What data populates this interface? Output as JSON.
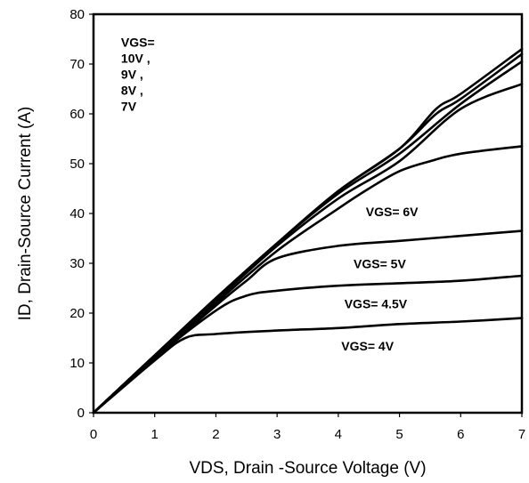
{
  "chart_data": {
    "type": "line",
    "title": "",
    "xlabel": "VDS, Drain -Source Voltage (V)",
    "ylabel": "ID, Drain-Source Current (A)",
    "xlim": [
      0,
      7
    ],
    "ylim": [
      0,
      80
    ],
    "xticks": [
      0,
      1,
      2,
      3,
      4,
      5,
      6,
      7
    ],
    "yticks": [
      0,
      10,
      20,
      30,
      40,
      50,
      60,
      70,
      80
    ],
    "grid": false,
    "line_color": "#000000",
    "series": [
      {
        "x": [
          0,
          1,
          2,
          3,
          4,
          5,
          5.6,
          6,
          7
        ],
        "y": [
          0,
          11.5,
          23,
          34,
          44.5,
          53,
          61,
          64,
          73
        ]
      },
      {
        "x": [
          0,
          1,
          2,
          3,
          4,
          5,
          5.6,
          6,
          7
        ],
        "y": [
          0,
          11.5,
          23,
          34,
          44.5,
          53,
          60,
          63,
          72
        ]
      },
      {
        "x": [
          0,
          1,
          2,
          3,
          4,
          5,
          6,
          7
        ],
        "y": [
          0,
          11.5,
          23,
          34,
          44,
          52,
          62,
          70.5
        ]
      },
      {
        "x": [
          0,
          1,
          2,
          3,
          4,
          5,
          6,
          7
        ],
        "y": [
          0,
          11.5,
          22.5,
          33.5,
          43,
          50.5,
          61,
          66
        ]
      },
      {
        "x": [
          0,
          1,
          2,
          3,
          4,
          4.5,
          5,
          5.5,
          6,
          7
        ],
        "y": [
          0,
          11,
          22,
          32.5,
          41,
          45,
          48.5,
          50.5,
          52,
          53.5
        ]
      },
      {
        "x": [
          0,
          1,
          2,
          2.5,
          3,
          4,
          5,
          6,
          7
        ],
        "y": [
          0,
          11,
          21.5,
          26.5,
          31,
          33.5,
          34.5,
          35.5,
          36.5
        ]
      },
      {
        "x": [
          0,
          1,
          2,
          2.5,
          3,
          4,
          5,
          6,
          7
        ],
        "y": [
          0,
          11,
          20.5,
          23.5,
          24.5,
          25.5,
          26,
          26.5,
          27.5
        ]
      },
      {
        "x": [
          0,
          1,
          1.5,
          2,
          3,
          4,
          5,
          6,
          7
        ],
        "y": [
          0,
          10.5,
          15,
          15.8,
          16.5,
          17,
          17.8,
          18.3,
          19
        ]
      }
    ],
    "annotations": [
      {
        "lines": [
          "VGS=",
          "10V ,",
          "9V ,",
          "8V ,",
          "7V"
        ],
        "x": 0.45,
        "y": 73.5
      },
      {
        "lines": [
          "VGS= 6V"
        ],
        "x": 4.45,
        "y": 39.5
      },
      {
        "lines": [
          "VGS= 5V"
        ],
        "x": 4.25,
        "y": 29
      },
      {
        "lines": [
          "VGS= 4.5V"
        ],
        "x": 4.1,
        "y": 21
      },
      {
        "lines": [
          "VGS= 4V"
        ],
        "x": 4.05,
        "y": 12.5
      }
    ]
  }
}
